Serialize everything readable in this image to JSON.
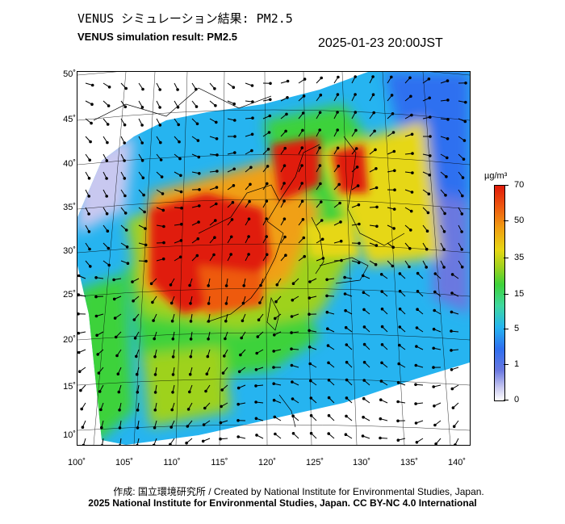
{
  "header": {
    "title_jp": "VENUS シミュレーション結果: PM2.5",
    "title_en": "VENUS simulation result: PM2.5",
    "timestamp": "2025-01-23 20:00JST"
  },
  "map": {
    "lat_labels": [
      "50˚",
      "45˚",
      "40˚",
      "35˚",
      "30˚",
      "25˚",
      "20˚",
      "15˚",
      "10˚"
    ],
    "lon_labels": [
      "100˚",
      "105˚",
      "110˚",
      "115˚",
      "120˚",
      "125˚",
      "130˚",
      "135˚",
      "140˚"
    ]
  },
  "colorbar": {
    "unit": "µg/m³",
    "labels": [
      "70",
      "50",
      "35",
      "15",
      "5",
      "1",
      "0"
    ]
  },
  "footer": {
    "credit_jp_en": "作成: 国立環境研究所 / Created by National Institute for Environmental Studies, Japan.",
    "copyright": "2025 National Institute for Environmental Studies, Japan. CC BY-NC 4.0 International"
  },
  "colors": {
    "high": "#e01a0a",
    "orange": "#f0a012",
    "yellow": "#e6d714",
    "green": "#3ed23a",
    "cyan": "#26b4f0",
    "blue": "#2f6ff0",
    "lavender": "#c8c8f0"
  }
}
